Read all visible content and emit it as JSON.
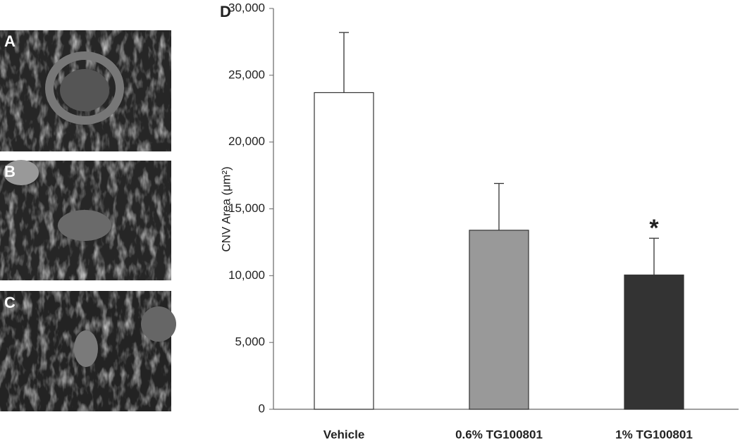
{
  "panels": [
    "A",
    "B",
    "C"
  ],
  "chart_data": {
    "type": "bar",
    "panel_label": "D",
    "y_label": "CNV Area (μm²)",
    "categories": [
      "Vehicle",
      "0.6% TG100801",
      "1% TG100801"
    ],
    "values": [
      23700,
      13400,
      10050
    ],
    "errors": [
      4500,
      3500,
      2750
    ],
    "colors": [
      "#ffffff",
      "#999999",
      "#333333"
    ],
    "annotation": "*",
    "ylim": [
      0,
      30000
    ],
    "yticks": [
      0,
      {
        "value": 5000,
        "label": "5,000"
      },
      {
        "value": 10000,
        "label": "10,000"
      },
      {
        "value": 15000,
        "label": "15,000"
      },
      {
        "value": 20000,
        "label": "20,000"
      },
      {
        "value": 25000,
        "label": "25,000"
      },
      {
        "value": 30000,
        "label": "30,000"
      }
    ]
  }
}
